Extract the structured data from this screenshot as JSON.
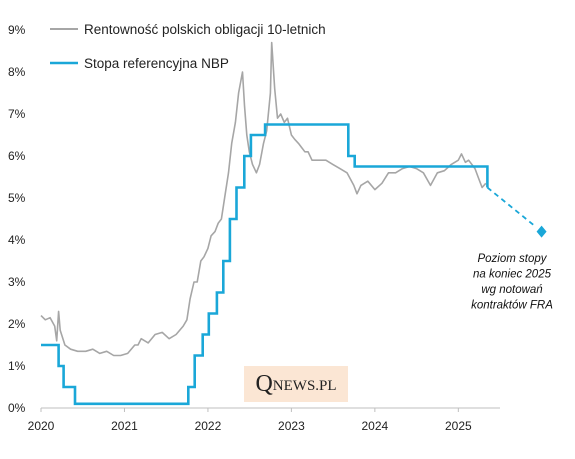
{
  "chart_data": {
    "type": "line",
    "title": "",
    "xlabel": "",
    "ylabel": "",
    "x_ticks": [
      "2020",
      "2021",
      "2022",
      "2023",
      "2024",
      "2025"
    ],
    "y_ticks": [
      "0%",
      "1%",
      "2%",
      "3%",
      "4%",
      "5%",
      "6%",
      "7%",
      "8%",
      "9%"
    ],
    "xlim": [
      "2020-01-01",
      "2026-01-15"
    ],
    "ylim": [
      0,
      9
    ],
    "grid": false,
    "legend_position": "top-left",
    "series": [
      {
        "name": "Rentowność polskich obligacji 10-letnich",
        "color": "#a6a6a6",
        "style": "line",
        "x": [
          "2020-01-01",
          "2020-01-20",
          "2020-02-10",
          "2020-03-01",
          "2020-03-10",
          "2020-03-18",
          "2020-03-25",
          "2020-04-15",
          "2020-05-10",
          "2020-06-10",
          "2020-07-15",
          "2020-08-15",
          "2020-09-15",
          "2020-10-15",
          "2020-11-15",
          "2020-12-15",
          "2021-01-15",
          "2021-02-15",
          "2021-03-01",
          "2021-03-15",
          "2021-04-15",
          "2021-05-15",
          "2021-06-15",
          "2021-07-15",
          "2021-08-15",
          "2021-09-15",
          "2021-10-01",
          "2021-10-15",
          "2021-11-01",
          "2021-11-15",
          "2021-12-01",
          "2021-12-15",
          "2022-01-01",
          "2022-01-15",
          "2022-02-01",
          "2022-02-15",
          "2022-03-01",
          "2022-03-15",
          "2022-04-01",
          "2022-04-15",
          "2022-05-01",
          "2022-05-15",
          "2022-06-01",
          "2022-06-10",
          "2022-06-20",
          "2022-07-01",
          "2022-07-15",
          "2022-08-01",
          "2022-08-15",
          "2022-09-01",
          "2022-09-15",
          "2022-10-01",
          "2022-10-07",
          "2022-10-20",
          "2022-11-01",
          "2022-11-15",
          "2022-12-01",
          "2022-12-15",
          "2023-01-01",
          "2023-01-15",
          "2023-02-01",
          "2023-02-15",
          "2023-03-01",
          "2023-03-15",
          "2023-04-01",
          "2023-05-01",
          "2023-06-01",
          "2023-07-01",
          "2023-08-01",
          "2023-09-01",
          "2023-10-01",
          "2023-10-15",
          "2023-11-01",
          "2023-12-01",
          "2024-01-01",
          "2024-02-01",
          "2024-03-01",
          "2024-04-01",
          "2024-05-01",
          "2024-06-01",
          "2024-07-01",
          "2024-08-01",
          "2024-09-01",
          "2024-10-01",
          "2024-11-01",
          "2024-12-01",
          "2025-01-01",
          "2025-01-15",
          "2025-02-01",
          "2025-02-15",
          "2025-03-01",
          "2025-03-15",
          "2025-04-01",
          "2025-04-15",
          "2025-05-01"
        ],
        "y": [
          2.2,
          2.1,
          2.15,
          1.95,
          1.6,
          2.3,
          1.85,
          1.5,
          1.4,
          1.35,
          1.35,
          1.4,
          1.3,
          1.35,
          1.25,
          1.25,
          1.3,
          1.5,
          1.5,
          1.65,
          1.55,
          1.75,
          1.8,
          1.65,
          1.75,
          1.95,
          2.1,
          2.6,
          3.0,
          3.0,
          3.5,
          3.6,
          3.8,
          4.1,
          4.2,
          4.4,
          4.5,
          5.0,
          5.6,
          6.3,
          6.8,
          7.5,
          8.0,
          7.2,
          6.5,
          6.1,
          5.8,
          5.6,
          5.8,
          6.3,
          6.6,
          7.5,
          8.7,
          7.6,
          6.9,
          7.0,
          6.8,
          6.9,
          6.5,
          6.4,
          6.3,
          6.2,
          6.1,
          6.1,
          5.9,
          5.9,
          5.9,
          5.8,
          5.7,
          5.6,
          5.3,
          5.1,
          5.3,
          5.4,
          5.2,
          5.35,
          5.6,
          5.6,
          5.7,
          5.75,
          5.7,
          5.6,
          5.3,
          5.6,
          5.65,
          5.8,
          5.9,
          6.05,
          5.85,
          5.9,
          5.8,
          5.7,
          5.45,
          5.25,
          5.35
        ]
      },
      {
        "name": "Stopa referencyjna NBP",
        "color": "#1aa7d8",
        "style": "step",
        "x": [
          "2020-01-01",
          "2020-03-18",
          "2020-04-09",
          "2020-05-29",
          "2021-10-07",
          "2021-11-04",
          "2021-12-09",
          "2022-01-05",
          "2022-02-09",
          "2022-03-09",
          "2022-04-07",
          "2022-05-06",
          "2022-06-09",
          "2022-07-08",
          "2022-09-08",
          "2023-09-07",
          "2023-10-05",
          "2025-05-08"
        ],
        "y": [
          1.5,
          1.0,
          0.5,
          0.1,
          0.5,
          1.25,
          1.75,
          2.25,
          2.75,
          3.5,
          4.5,
          5.25,
          6.0,
          6.5,
          6.75,
          6.0,
          5.75,
          5.25
        ]
      },
      {
        "name": "",
        "color": "#1aa7d8",
        "style": "dashed-projection",
        "x": [
          "2025-05-08",
          "2025-12-31"
        ],
        "y": [
          5.25,
          4.2
        ]
      }
    ],
    "annotations": [
      {
        "text_lines": [
          "Poziom stopy",
          "na koniec 2025",
          "wg notowań",
          "kontraktów  FRA"
        ],
        "x": "2025-12-31",
        "y": 4.2,
        "marker": "diamond"
      }
    ]
  },
  "branding": {
    "logo_q": "Q",
    "logo_rest": "NEWS.PL"
  }
}
